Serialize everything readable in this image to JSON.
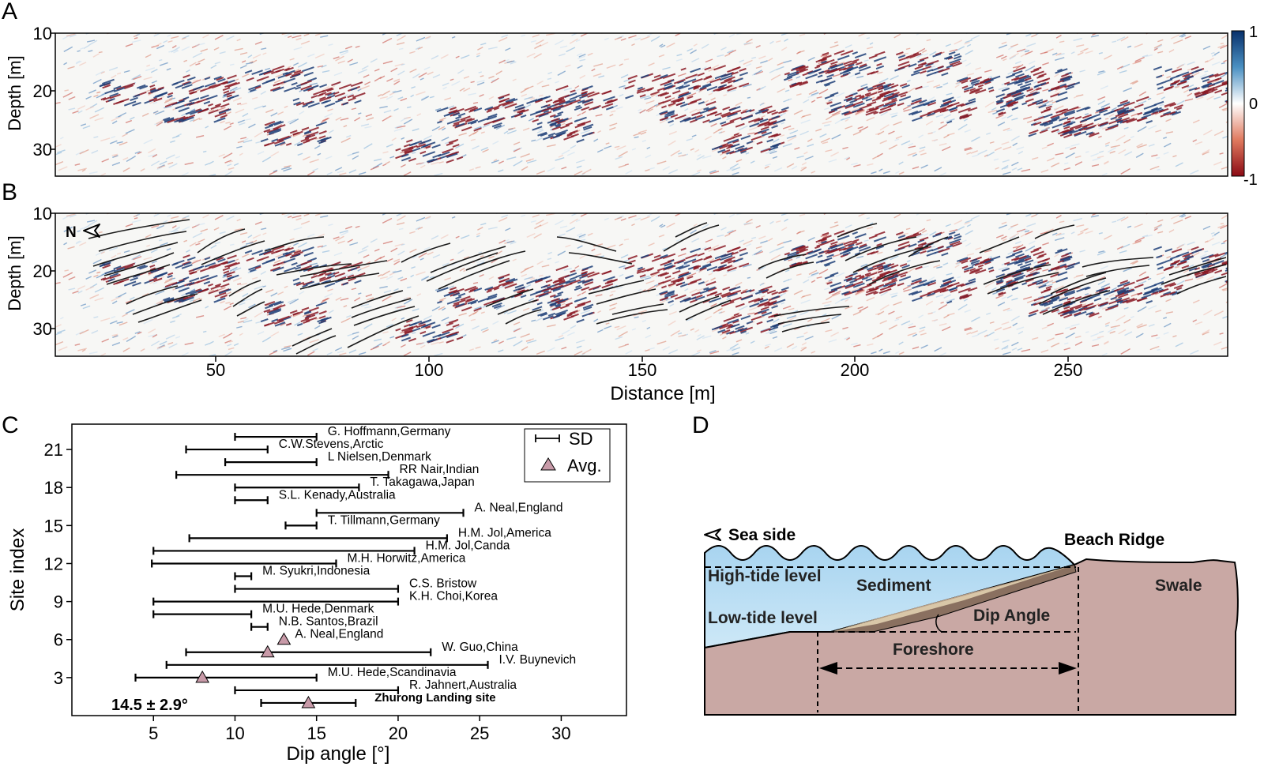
{
  "panels": {
    "a": {
      "letter": "A",
      "ylabel": "Depth [m]",
      "yticks": [
        "10",
        "20",
        "30"
      ],
      "colorbar": {
        "ticks": [
          "1",
          "0",
          "-1"
        ],
        "colors": [
          "#08306b",
          "#4a90c2",
          "#ffffff",
          "#e07a5f",
          "#8b0a14"
        ]
      }
    },
    "b": {
      "letter": "B",
      "ylabel": "Depth [m]",
      "yticks": [
        "10",
        "20",
        "30"
      ],
      "north_label": "N",
      "xlabel": "Distance [m]",
      "xticks": [
        "50",
        "100",
        "150",
        "200",
        "250"
      ]
    },
    "c": {
      "letter": "C",
      "annotation": "14.5 ± 2.9°",
      "legend": {
        "sd": "SD",
        "avg": "Avg."
      }
    },
    "d": {
      "letter": "D",
      "labels": {
        "sea_side": "Sea side",
        "beach_ridge": "Beach Ridge",
        "high_tide": "High-tide level",
        "sediment": "Sediment",
        "swale": "Swale",
        "low_tide": "Low-tide level",
        "dip_angle": "Dip Angle",
        "foreshore": "Foreshore"
      },
      "colors": {
        "water": "#a8d4f0",
        "land": "#c9a8a4",
        "sediment_light": "#d9c7a8",
        "sediment_dark": "#8a7060"
      }
    }
  },
  "chart_data": {
    "type": "errorbar",
    "xlabel": "Dip angle [°]",
    "ylabel": "Site index",
    "xlim": [
      0,
      34
    ],
    "ylim": [
      0,
      23
    ],
    "xticks": [
      5,
      10,
      15,
      20,
      25,
      30
    ],
    "yticks": [
      3,
      6,
      9,
      12,
      15,
      18,
      21
    ],
    "series": [
      {
        "name": "SD",
        "marker": "errorbar",
        "color": "#000000"
      },
      {
        "name": "Avg.",
        "marker": "triangle",
        "color": "#c89aa8"
      }
    ],
    "sites": [
      {
        "index": 22,
        "label": "G. Hoffmann,Germany",
        "low": 10,
        "high": 15
      },
      {
        "index": 21,
        "label": "C.W.Stevens,Arctic",
        "low": 7,
        "high": 12
      },
      {
        "index": 20,
        "label": "L Nielsen,Denmark",
        "low": 9.4,
        "high": 15
      },
      {
        "index": 19,
        "label": "RR Nair,Indian",
        "low": 6.4,
        "high": 19.4
      },
      {
        "index": 18,
        "label": "T. Takagawa,Japan",
        "low": 10,
        "high": 17.6
      },
      {
        "index": 17,
        "label": "S.L. Kenady,Australia",
        "low": 10,
        "high": 12
      },
      {
        "index": 16,
        "label": "A. Neal,England",
        "low": 15,
        "high": 24
      },
      {
        "index": 15,
        "label": "T. Tillmann,Germany",
        "low": 13.1,
        "high": 15
      },
      {
        "index": 14,
        "label": "H.M. Jol,America",
        "low": 7.2,
        "high": 23
      },
      {
        "index": 13,
        "label": "H.M. Jol,Canda",
        "low": 5,
        "high": 21
      },
      {
        "index": 12,
        "label": "M.H. Horwitz,America",
        "low": 4.9,
        "high": 16.2
      },
      {
        "index": 11,
        "label": "M. Syukri,Indonesia",
        "low": 10,
        "high": 11
      },
      {
        "index": 10,
        "label": "C.S. Bristow",
        "low": 10,
        "high": 20
      },
      {
        "index": 9,
        "label": "K.H. Choi,Korea",
        "low": 5,
        "high": 20
      },
      {
        "index": 8,
        "label": "M.U. Hede,Denmark",
        "low": 5,
        "high": 11
      },
      {
        "index": 7,
        "label": "N.B. Santos,Brazil",
        "low": 11,
        "high": 12
      },
      {
        "index": 6,
        "label": "A. Neal,England",
        "avg": 13
      },
      {
        "index": 5,
        "label": "W. Guo,China",
        "low": 7,
        "high": 22,
        "avg": 12
      },
      {
        "index": 4,
        "label": "I.V. Buynevich",
        "low": 5.8,
        "high": 25.5
      },
      {
        "index": 3,
        "label": "M.U. Hede,Scandinavia",
        "low": 3.9,
        "high": 15,
        "avg": 8
      },
      {
        "index": 2,
        "label": "R. Jahnert,Australia",
        "low": 10,
        "high": 20
      },
      {
        "index": 1,
        "label": "Zhurong Landing site",
        "low": 11.6,
        "high": 17.4,
        "avg": 14.5,
        "bold": true
      }
    ]
  }
}
